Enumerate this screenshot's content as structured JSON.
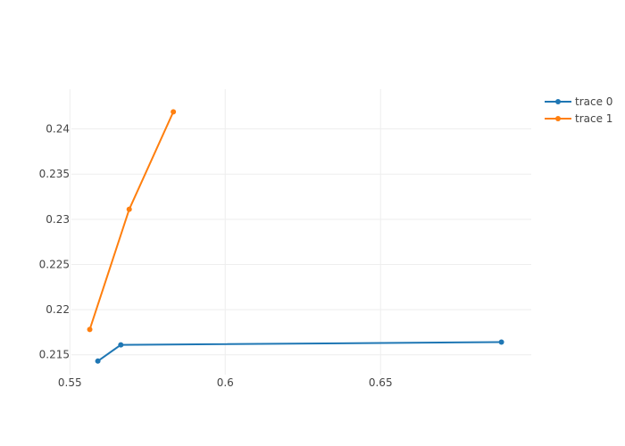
{
  "chart_data": {
    "type": "line",
    "title": "",
    "xlabel": "",
    "ylabel": "",
    "xlim": [
      0.5505,
      0.6985
    ],
    "ylim": [
      0.2128,
      0.2444
    ],
    "xticks": [
      "0.55",
      "0.6",
      "0.65"
    ],
    "xtick_values": [
      0.55,
      0.6,
      0.65
    ],
    "yticks": [
      "0.215",
      "0.22",
      "0.225",
      "0.23",
      "0.235",
      "0.24"
    ],
    "ytick_values": [
      0.215,
      0.22,
      0.225,
      0.23,
      0.235,
      0.24
    ],
    "grid": true,
    "legend_position": "top-right",
    "series": [
      {
        "name": "trace 0",
        "color": "#1f77b4",
        "x": [
          0.559,
          0.5664,
          0.6889
        ],
        "y": [
          0.2143,
          0.2161,
          0.2164
        ]
      },
      {
        "name": "trace 1",
        "color": "#ff7f0e",
        "x": [
          0.5564,
          0.5691,
          0.5833
        ],
        "y": [
          0.2178,
          0.2311,
          0.2419
        ]
      }
    ]
  }
}
